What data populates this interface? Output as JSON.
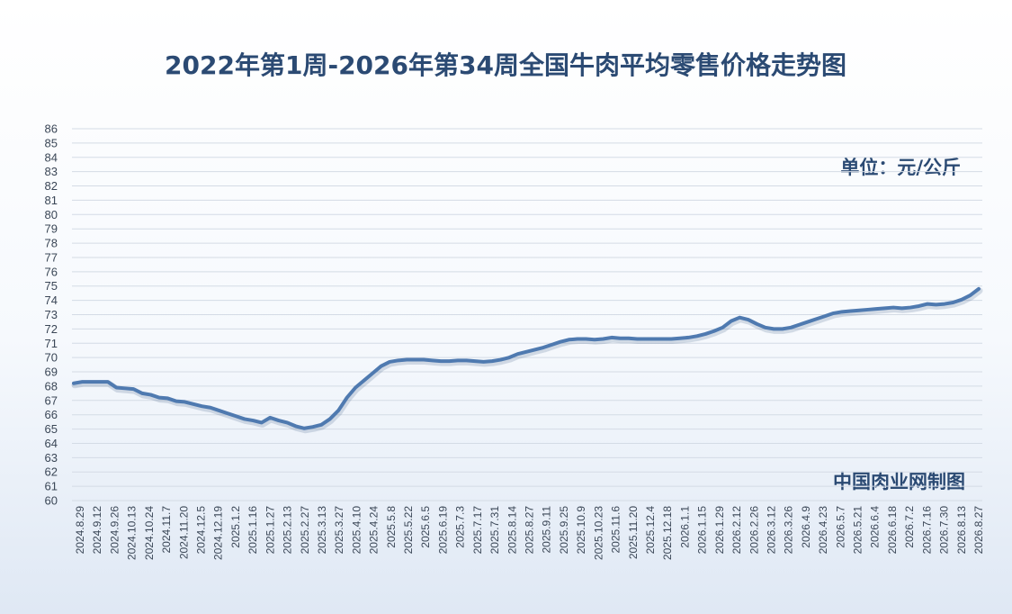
{
  "chart_data": {
    "type": "line",
    "title": "2022年第1周-2026年第34周全国牛肉平均零售价格走势图",
    "unit_label": "单位：元/公斤",
    "source_label": "中国肉业网制图",
    "ylim": [
      60,
      86
    ],
    "yticks": [
      60,
      61,
      62,
      63,
      64,
      65,
      66,
      67,
      68,
      69,
      70,
      71,
      72,
      73,
      74,
      75,
      76,
      77,
      78,
      79,
      80,
      81,
      82,
      83,
      84,
      85,
      86
    ],
    "grid": true,
    "legend": "none",
    "line_color": "#4f7ab0",
    "x_tick_labels": [
      "2024.8.29",
      "2024.9.12",
      "2024.9.26",
      "2024.10.13",
      "2024.10.24",
      "2024.11.7",
      "2024.11.20",
      "2024.12.5",
      "2024.12.19",
      "2025.1.2",
      "2025.1.16",
      "2025.1.27",
      "2025.2.13",
      "2025.2.27",
      "2025.3.13",
      "2025.3.27",
      "2025.4.10",
      "2025.4.24",
      "2025.5.8",
      "2025.5.22",
      "2025.6.5",
      "2025.6.19",
      "2025.7.3",
      "2025.7.17",
      "2025.7.31",
      "2025.8.14",
      "2025.8.27",
      "2025.9.11",
      "2025.9.25",
      "2025.10.9",
      "2025.10.23",
      "2025.11.6",
      "2025.11.20",
      "2025.12.4",
      "2025.12.18",
      "2026.1.1",
      "2026.1.15",
      "2026.1.29",
      "2026.2.12",
      "2026.2.26",
      "2026.3.12",
      "2026.3.26",
      "2026.4.9",
      "2026.4.23",
      "2026.5.7",
      "2026.5.21",
      "2026.6.4",
      "2026.6.18",
      "2026.7.2",
      "2026.7.16",
      "2026.7.30",
      "2026.8.13",
      "2026.8.27"
    ],
    "values": [
      68.2,
      68.3,
      68.3,
      68.3,
      68.3,
      67.9,
      67.85,
      67.8,
      67.5,
      67.4,
      67.2,
      67.15,
      66.95,
      66.9,
      66.75,
      66.6,
      66.5,
      66.3,
      66.1,
      65.9,
      65.7,
      65.6,
      65.45,
      65.8,
      65.6,
      65.45,
      65.2,
      65.05,
      65.15,
      65.3,
      65.7,
      66.3,
      67.2,
      67.9,
      68.4,
      68.9,
      69.4,
      69.7,
      69.8,
      69.85,
      69.85,
      69.85,
      69.8,
      69.75,
      69.75,
      69.8,
      69.8,
      69.75,
      69.7,
      69.75,
      69.85,
      70.0,
      70.25,
      70.4,
      70.55,
      70.7,
      70.9,
      71.1,
      71.25,
      71.3,
      71.3,
      71.25,
      71.3,
      71.4,
      71.35,
      71.35,
      71.3,
      71.3,
      71.3,
      71.3,
      71.3,
      71.35,
      71.4,
      71.5,
      71.65,
      71.85,
      72.1,
      72.55,
      72.8,
      72.65,
      72.35,
      72.1,
      72.0,
      72.0,
      72.1,
      72.3,
      72.5,
      72.7,
      72.9,
      73.1,
      73.2,
      73.25,
      73.3,
      73.35,
      73.4,
      73.45,
      73.5,
      73.45,
      73.5,
      73.6,
      73.75,
      73.7,
      73.75,
      73.85,
      74.05,
      74.35,
      74.8
    ]
  }
}
